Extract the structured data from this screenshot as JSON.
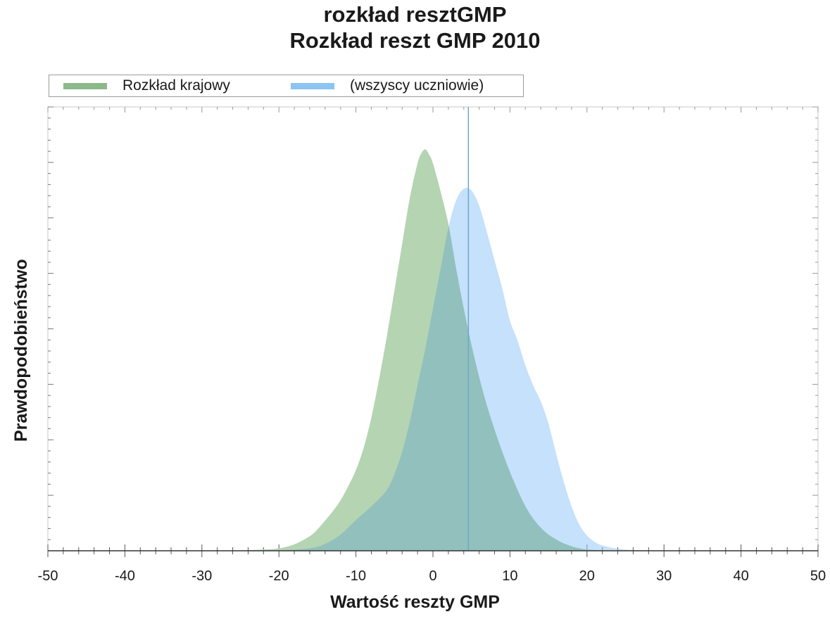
{
  "chart_data": {
    "type": "area",
    "title": "rozkład resztGMP",
    "subtitle": "Rozkład reszt GMP 2010",
    "xlabel": "Wartość reszty GMP",
    "ylabel": "Prawdopodobieństwo",
    "xlim": [
      -50,
      50
    ],
    "ylim": [
      0,
      1.1
    ],
    "xticks": [
      -50,
      -40,
      -30,
      -20,
      -10,
      0,
      10,
      20,
      30,
      40,
      50
    ],
    "xtick_labels": [
      "-50",
      "-40",
      "-30",
      "-20",
      "-10",
      "0",
      "10",
      "20",
      "30",
      "40",
      "50"
    ],
    "y_tick_labels_shown": false,
    "grid": false,
    "legend_position": "top-left",
    "vertical_line": {
      "x": 4.6,
      "color": "#6fa8c8"
    },
    "series": [
      {
        "name": "Rozkład krajowy",
        "color": "#8db88a",
        "fill": "#b5d4b1",
        "x": [
          -30,
          -25,
          -22,
          -20,
          -18,
          -16,
          -15,
          -14,
          -13,
          -12,
          -11,
          -10,
          -9,
          -8,
          -7,
          -6,
          -5,
          -4,
          -3,
          -2,
          -1.5,
          -1,
          -0.5,
          0,
          1,
          2,
          3,
          4,
          5,
          6,
          7,
          8,
          9,
          10,
          11,
          12,
          13,
          14,
          15,
          16,
          17,
          18,
          19,
          20,
          22,
          24,
          26,
          30
        ],
        "y": [
          0.0,
          0.001,
          0.003,
          0.006,
          0.016,
          0.036,
          0.053,
          0.075,
          0.098,
          0.125,
          0.16,
          0.2,
          0.255,
          0.33,
          0.425,
          0.53,
          0.645,
          0.76,
          0.875,
          0.96,
          0.985,
          0.995,
          0.982,
          0.96,
          0.89,
          0.81,
          0.7,
          0.6,
          0.51,
          0.43,
          0.36,
          0.3,
          0.245,
          0.195,
          0.15,
          0.11,
          0.08,
          0.057,
          0.04,
          0.028,
          0.018,
          0.011,
          0.006,
          0.003,
          0.001,
          0.0,
          0.0,
          0.0
        ]
      },
      {
        "name": "(wszyscy uczniowie)",
        "color": "#8cc4f2",
        "fill": "rgba(150,200,248,0.55)",
        "x": [
          -20,
          -16,
          -14,
          -12,
          -10,
          -8,
          -6,
          -5,
          -4,
          -3,
          -2,
          -1,
          0,
          1,
          2,
          3,
          4,
          5,
          6,
          7,
          8,
          9,
          10,
          11,
          12,
          13,
          14,
          15,
          16,
          17,
          18,
          19,
          20,
          21,
          22,
          24,
          26,
          30
        ],
        "y": [
          0.0,
          0.006,
          0.017,
          0.04,
          0.076,
          0.11,
          0.15,
          0.19,
          0.245,
          0.32,
          0.41,
          0.5,
          0.6,
          0.7,
          0.8,
          0.868,
          0.897,
          0.893,
          0.855,
          0.79,
          0.72,
          0.65,
          0.57,
          0.52,
          0.46,
          0.41,
          0.37,
          0.315,
          0.24,
          0.17,
          0.11,
          0.065,
          0.038,
          0.022,
          0.013,
          0.005,
          0.002,
          0.0
        ]
      },
      {
        "name": "overlap",
        "fill": "#91c0bd"
      }
    ]
  }
}
